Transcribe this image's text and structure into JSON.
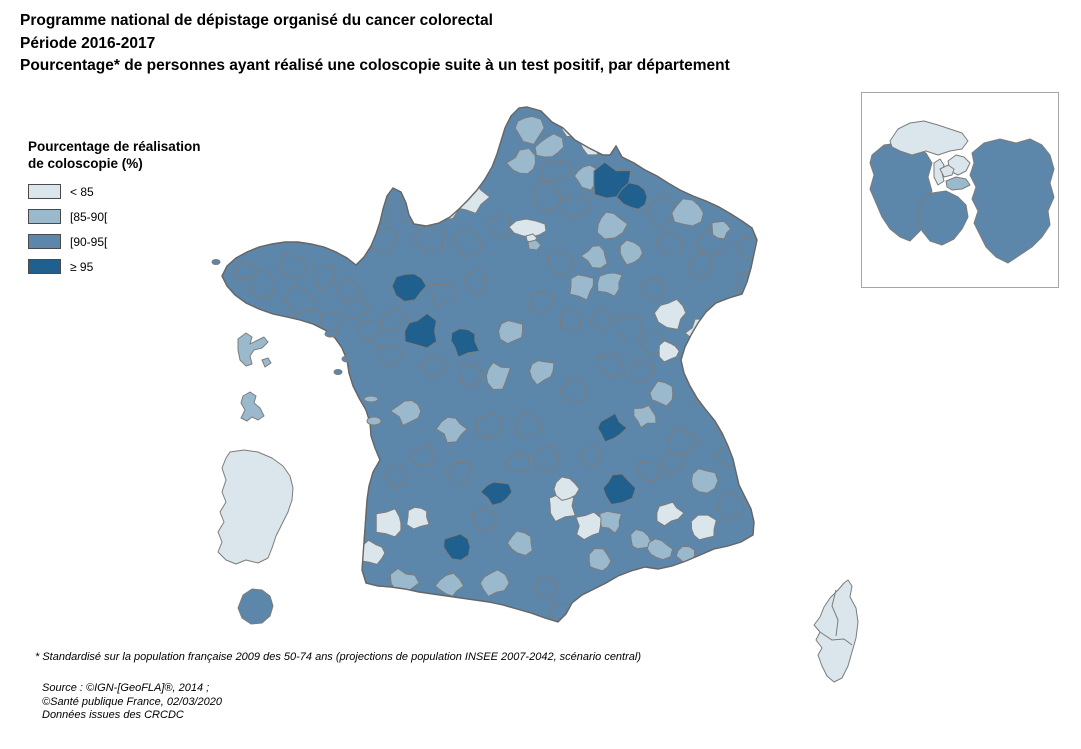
{
  "title": {
    "line1": "Programme national de dépistage organisé du cancer colorectal",
    "line2": "Période 2016-2017",
    "line3": "Pourcentage* de personnes ayant réalisé une coloscopie suite à un test positif, par département"
  },
  "legend": {
    "title_line1": "Pourcentage de réalisation",
    "title_line2": "de coloscopie (%)",
    "items": [
      {
        "label": "< 85",
        "color": "#dae6eb",
        "class_key": "c1"
      },
      {
        "label": "[85-90[",
        "color": "#9bb9cc",
        "class_key": "c2"
      },
      {
        "label": "[90-95[",
        "color": "#5d87aa",
        "class_key": "c3"
      },
      {
        "label": "≥ 95",
        "color": "#20608f",
        "class_key": "c4"
      }
    ],
    "swatch_border_color": "#4a4a4a"
  },
  "map": {
    "department_border_color": "#7c7c7c",
    "national_border_color": "#666666",
    "inset_border_color": "#a6a6a6",
    "areas": [
      {
        "name": "France métropolitaine",
        "dominant_class": "[90-95["
      },
      {
        "name": "Île-de-France (encart)",
        "dominant_class": "[90-95["
      },
      {
        "name": "Corse",
        "dominant_class": "< 85"
      },
      {
        "name": "Guadeloupe",
        "dominant_class": "[85-90["
      },
      {
        "name": "Martinique",
        "dominant_class": "[85-90["
      },
      {
        "name": "Guyane",
        "dominant_class": "< 85"
      },
      {
        "name": "La Réunion",
        "dominant_class": "[90-95["
      }
    ]
  },
  "footnote": "* Standardisé sur la population française 2009 des 50-74 ans (projections de population INSEE 2007-2042, scénario central)",
  "source": {
    "line1": "Source : ©IGN-[GeoFLA]®, 2014 ;",
    "line2": "©Santé publique France, 02/03/2020",
    "line3": "Données issues des CRCDC"
  }
}
